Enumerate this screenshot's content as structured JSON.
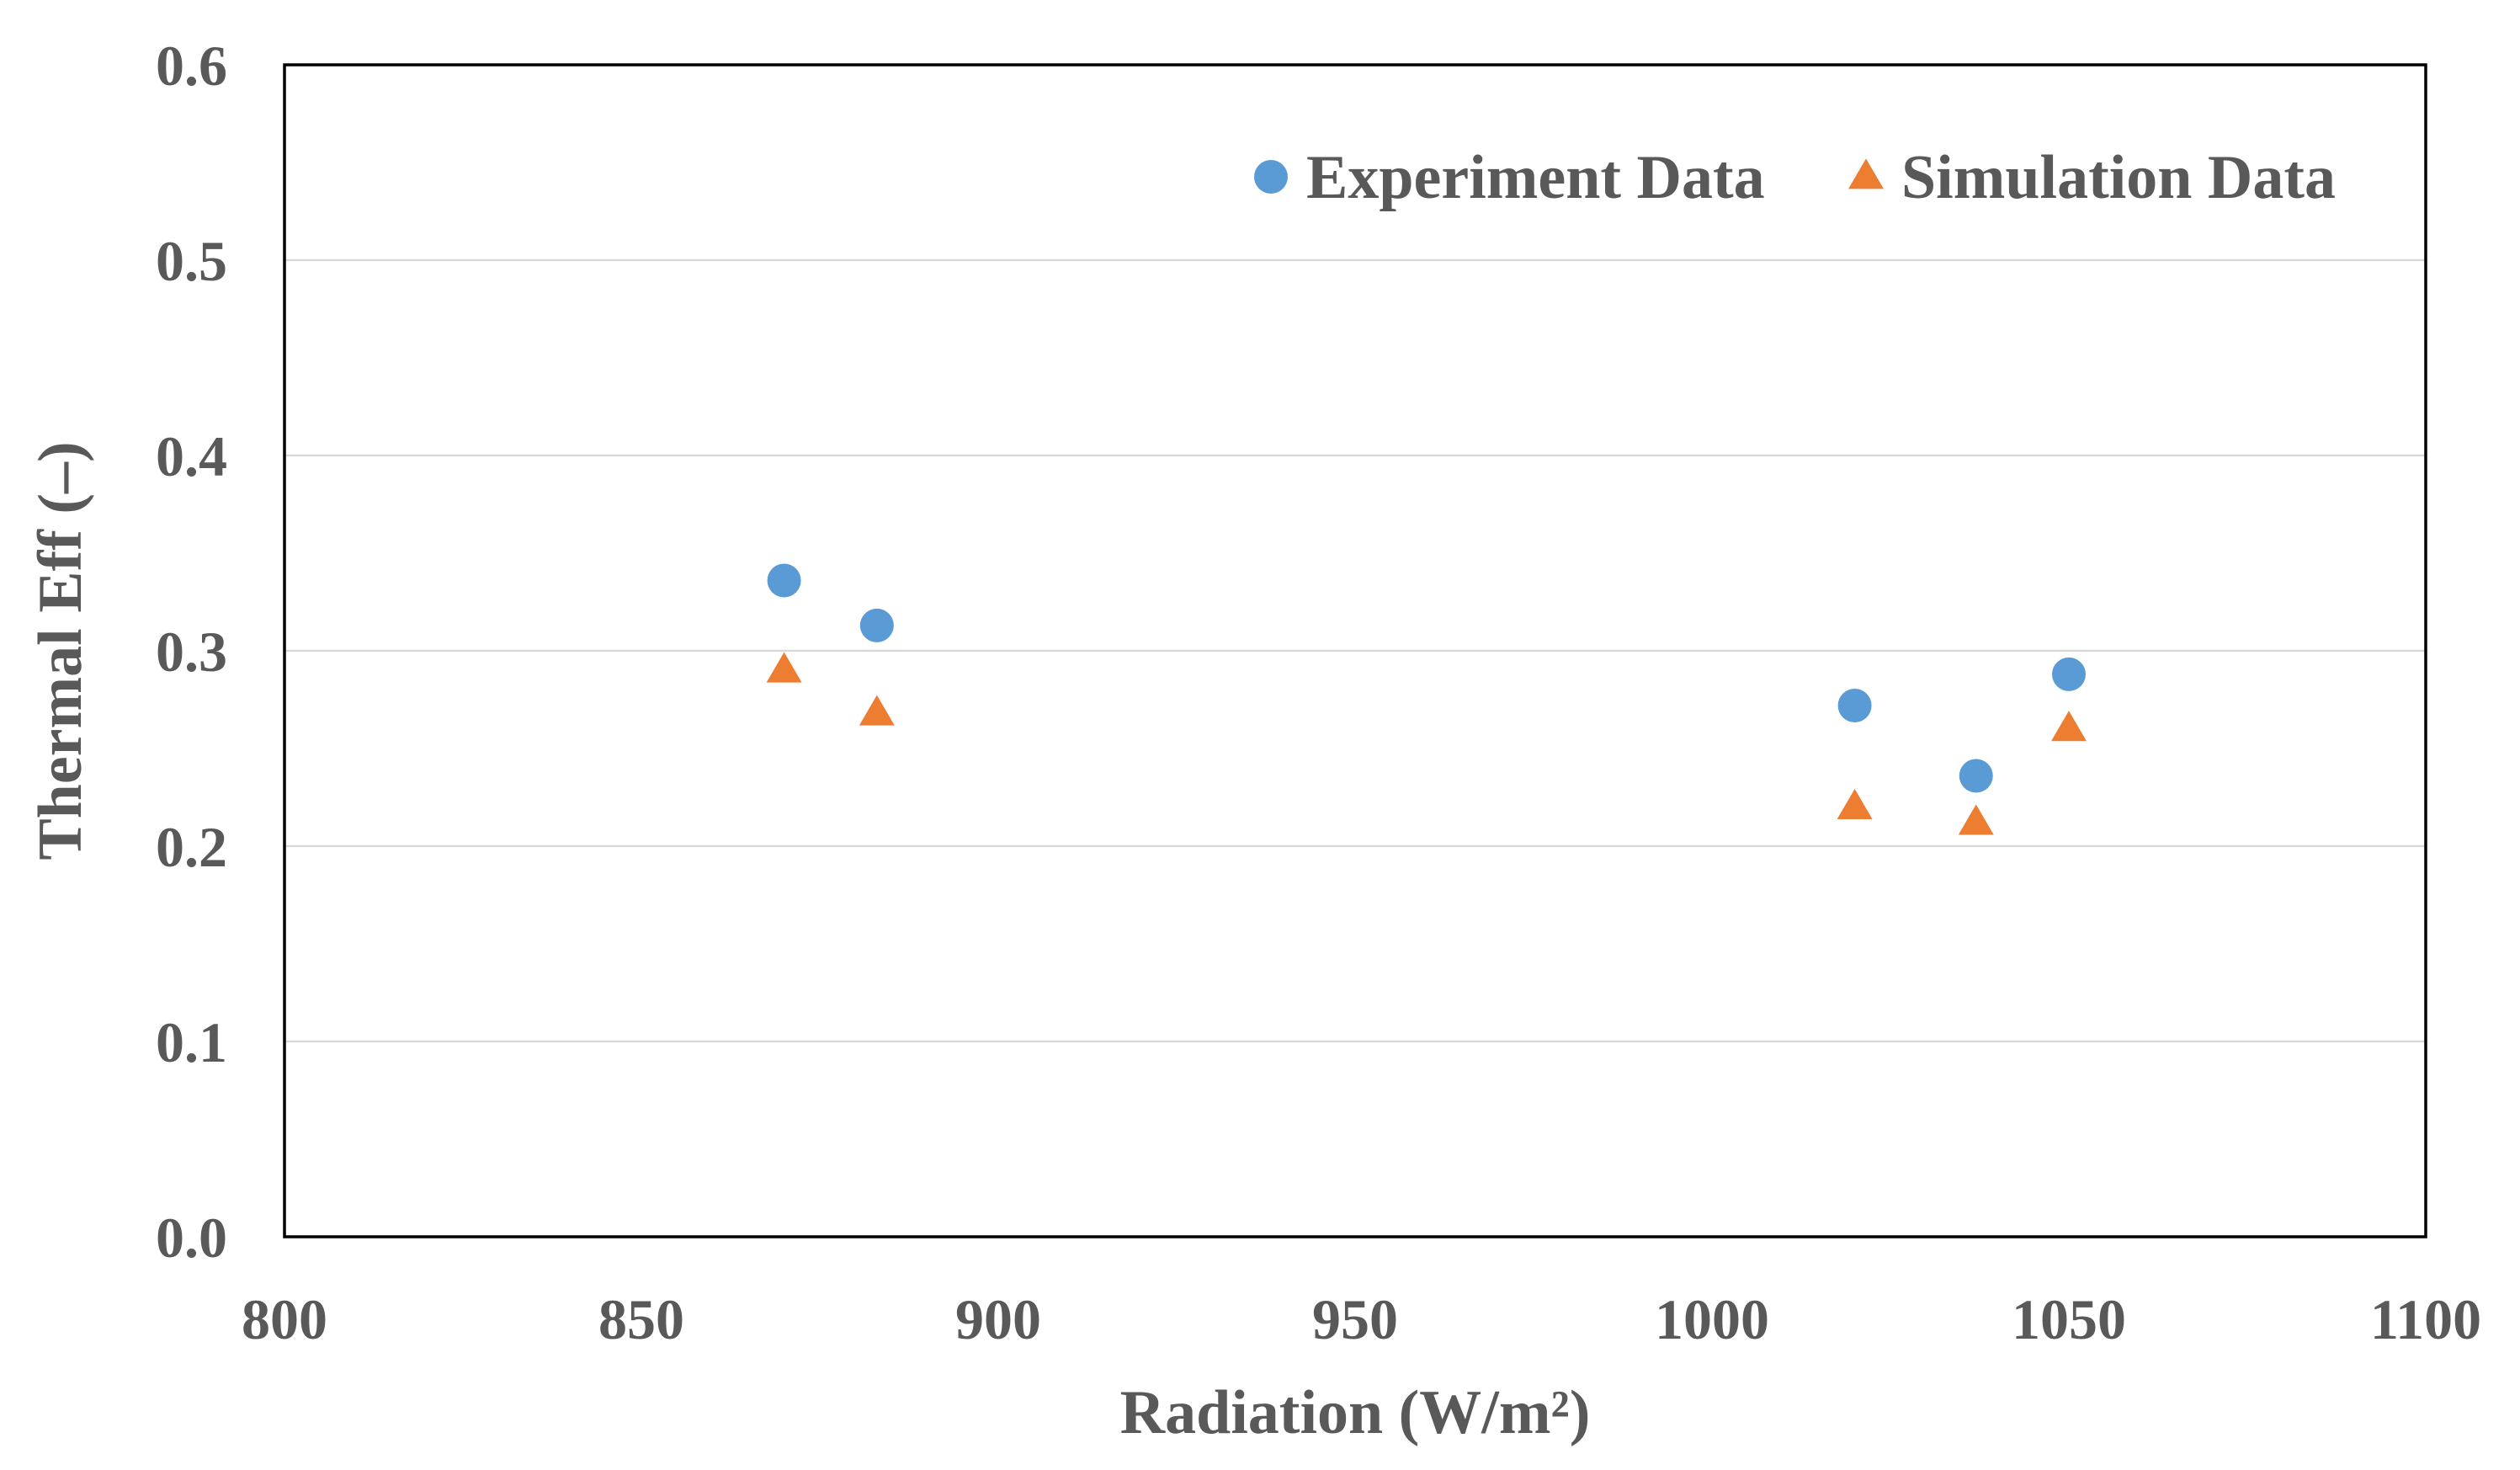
{
  "chart_data": {
    "type": "scatter",
    "title": "",
    "xlabel": "Radiation (W/m²)",
    "ylabel": "Thermal Eff (–)",
    "xlim": [
      800,
      1100
    ],
    "ylim": [
      0.0,
      0.6
    ],
    "xticks": [
      800,
      850,
      900,
      950,
      1000,
      1050,
      1100
    ],
    "xtick_labels": [
      "800",
      "850",
      "900",
      "950",
      "1000",
      "1050",
      "1100"
    ],
    "yticks": [
      0.0,
      0.1,
      0.2,
      0.3,
      0.4,
      0.5,
      0.6
    ],
    "ytick_labels": [
      "0.0",
      "0.1",
      "0.2",
      "0.3",
      "0.4",
      "0.5",
      "0.6"
    ],
    "grid": "horizontal",
    "legend_position": "top-right",
    "series": [
      {
        "name": "Experiment Data",
        "marker": "circle",
        "color": "#5b9bd5",
        "points": [
          {
            "x": 870,
            "y": 0.336
          },
          {
            "x": 883,
            "y": 0.313
          },
          {
            "x": 1020,
            "y": 0.272
          },
          {
            "x": 1037,
            "y": 0.236
          },
          {
            "x": 1050,
            "y": 0.288
          }
        ]
      },
      {
        "name": "Simulation Data",
        "marker": "triangle",
        "color": "#ed7d31",
        "points": [
          {
            "x": 870,
            "y": 0.29
          },
          {
            "x": 883,
            "y": 0.268
          },
          {
            "x": 1020,
            "y": 0.22
          },
          {
            "x": 1037,
            "y": 0.212
          },
          {
            "x": 1050,
            "y": 0.26
          }
        ]
      }
    ]
  }
}
